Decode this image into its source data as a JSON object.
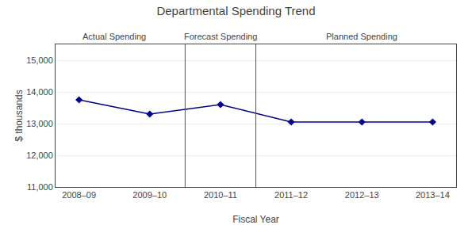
{
  "chart_data": {
    "type": "line",
    "title": "Departmental Spending Trend",
    "xlabel": "Fiscal Year",
    "ylabel": "$ thousands",
    "categories": [
      "2008–09",
      "2009–10",
      "2010–11",
      "2011–12",
      "2012–13",
      "2013–14"
    ],
    "values": [
      13750,
      13300,
      13600,
      13050,
      13050,
      13050
    ],
    "color": "#00008B",
    "marker": "diamond",
    "ylim": [
      11000,
      15500
    ],
    "yticks": [
      {
        "value": 11000,
        "label": "11,000"
      },
      {
        "value": 12000,
        "label": "12,000"
      },
      {
        "value": 13000,
        "label": "13,000"
      },
      {
        "value": 14000,
        "label": "14,000"
      },
      {
        "value": 15000,
        "label": "15,000"
      }
    ],
    "grid": true,
    "sections": [
      {
        "label": "Actual Spending",
        "from": "2008–09",
        "to": "2009–10"
      },
      {
        "label": "Forecast Spending",
        "from": "2010–11",
        "to": "2010–11"
      },
      {
        "label": "Planned Spending",
        "from": "2011–12",
        "to": "2013–14"
      }
    ]
  }
}
